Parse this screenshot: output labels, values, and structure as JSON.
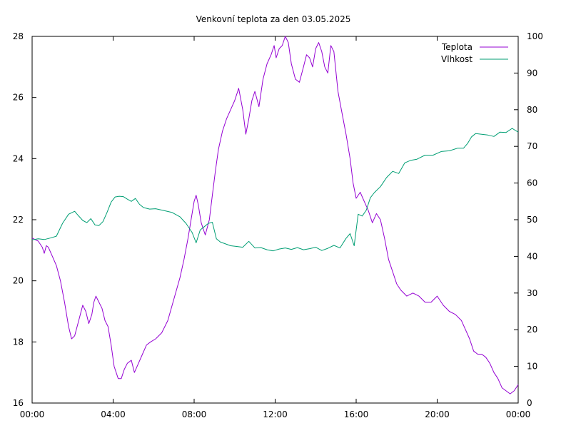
{
  "chart_data": {
    "type": "line",
    "title": "Venkovní teplota za den 03.05.2025",
    "xlabel": "",
    "ylabel": "",
    "y2label": "",
    "x_ticks": [
      "00:00",
      "04:00",
      "08:00",
      "12:00",
      "16:00",
      "20:00",
      "00:00"
    ],
    "xlim_hours": [
      0,
      24
    ],
    "ylim": [
      16,
      28
    ],
    "y_ticks": [
      "16",
      "18",
      "20",
      "22",
      "24",
      "26",
      "28"
    ],
    "y2lim": [
      0,
      100
    ],
    "y2_ticks": [
      "0",
      "10",
      "20",
      "30",
      "40",
      "50",
      "60",
      "70",
      "80",
      "90",
      "100"
    ],
    "grid": false,
    "legend_position": "top-right",
    "series": [
      {
        "name": "Teplota",
        "axis": "left",
        "color": "#9400d3",
        "x": [
          0,
          0.3,
          0.5,
          0.6,
          0.7,
          0.8,
          1.0,
          1.2,
          1.4,
          1.6,
          1.8,
          1.95,
          2.1,
          2.3,
          2.5,
          2.65,
          2.8,
          2.95,
          3.05,
          3.15,
          3.3,
          3.45,
          3.6,
          3.75,
          3.9,
          4.05,
          4.25,
          4.4,
          4.55,
          4.7,
          4.9,
          5.05,
          5.25,
          5.45,
          5.65,
          5.85,
          6.1,
          6.4,
          6.7,
          7.0,
          7.3,
          7.5,
          7.7,
          7.85,
          8.0,
          8.1,
          8.2,
          8.35,
          8.55,
          8.75,
          8.9,
          9.05,
          9.2,
          9.4,
          9.6,
          9.8,
          10.0,
          10.2,
          10.4,
          10.55,
          10.7,
          10.85,
          11.0,
          11.2,
          11.4,
          11.6,
          11.8,
          11.95,
          12.05,
          12.2,
          12.35,
          12.5,
          12.65,
          12.8,
          13.0,
          13.2,
          13.4,
          13.55,
          13.7,
          13.85,
          14.0,
          14.15,
          14.3,
          14.45,
          14.6,
          14.75,
          14.9,
          15.1,
          15.3,
          15.5,
          15.7,
          15.85,
          16.0,
          16.2,
          16.4,
          16.6,
          16.8,
          17.0,
          17.2,
          17.4,
          17.6,
          17.8,
          18.0,
          18.2,
          18.5,
          18.8,
          19.1,
          19.4,
          19.7,
          20.0,
          20.3,
          20.6,
          20.9,
          21.2,
          21.4,
          21.6,
          21.8,
          22.0,
          22.2,
          22.4,
          22.6,
          22.8,
          23.0,
          23.2,
          23.4,
          23.6,
          23.8,
          24.0
        ],
        "values": [
          21.4,
          21.3,
          21.1,
          20.9,
          21.15,
          21.1,
          20.8,
          20.5,
          20.0,
          19.3,
          18.5,
          18.1,
          18.2,
          18.7,
          19.2,
          19.0,
          18.6,
          18.9,
          19.3,
          19.5,
          19.3,
          19.1,
          18.7,
          18.5,
          17.9,
          17.2,
          16.8,
          16.8,
          17.1,
          17.3,
          17.4,
          17.0,
          17.3,
          17.6,
          17.9,
          18.0,
          18.1,
          18.3,
          18.7,
          19.4,
          20.1,
          20.7,
          21.4,
          22.0,
          22.6,
          22.8,
          22.5,
          21.9,
          21.5,
          22.0,
          22.8,
          23.6,
          24.3,
          24.9,
          25.3,
          25.6,
          25.9,
          26.3,
          25.6,
          24.8,
          25.3,
          25.9,
          26.2,
          25.7,
          26.6,
          27.1,
          27.4,
          27.7,
          27.3,
          27.6,
          27.7,
          28.0,
          27.8,
          27.1,
          26.6,
          26.5,
          27.0,
          27.4,
          27.3,
          27.0,
          27.6,
          27.8,
          27.5,
          27.0,
          26.8,
          27.7,
          27.5,
          26.2,
          25.5,
          24.8,
          24.0,
          23.2,
          22.7,
          22.9,
          22.6,
          22.3,
          21.9,
          22.2,
          22.0,
          21.4,
          20.7,
          20.3,
          19.9,
          19.7,
          19.5,
          19.6,
          19.5,
          19.3,
          19.3,
          19.5,
          19.2,
          19.0,
          18.9,
          18.7,
          18.4,
          18.1,
          17.7,
          17.6,
          17.6,
          17.5,
          17.3,
          17.0,
          16.8,
          16.5,
          16.4,
          16.3,
          16.4,
          16.6
        ]
      },
      {
        "name": "Vlhkost",
        "axis": "right",
        "color": "#009e73",
        "x": [
          0,
          0.3,
          0.6,
          0.9,
          1.2,
          1.5,
          1.8,
          2.1,
          2.3,
          2.5,
          2.7,
          2.9,
          3.1,
          3.3,
          3.5,
          3.7,
          3.9,
          4.1,
          4.3,
          4.5,
          4.7,
          4.9,
          5.1,
          5.3,
          5.5,
          5.8,
          6.1,
          6.5,
          6.9,
          7.3,
          7.6,
          7.9,
          8.1,
          8.3,
          8.5,
          8.7,
          8.9,
          9.1,
          9.3,
          9.5,
          9.8,
          10.1,
          10.4,
          10.7,
          11.0,
          11.3,
          11.6,
          11.9,
          12.2,
          12.5,
          12.8,
          13.1,
          13.4,
          13.7,
          14.0,
          14.3,
          14.6,
          14.9,
          15.2,
          15.5,
          15.7,
          15.9,
          16.1,
          16.3,
          16.5,
          16.7,
          16.9,
          17.2,
          17.5,
          17.8,
          18.1,
          18.4,
          18.7,
          19.0,
          19.4,
          19.8,
          20.2,
          20.6,
          21.0,
          21.3,
          21.5,
          21.7,
          21.9,
          22.2,
          22.5,
          22.8,
          23.1,
          23.4,
          23.7,
          24.0
        ],
        "values": [
          44.5,
          44.8,
          44.6,
          45.0,
          45.5,
          49.0,
          51.5,
          52.3,
          51.0,
          49.8,
          49.2,
          50.3,
          48.6,
          48.4,
          49.5,
          52.0,
          54.8,
          56.2,
          56.4,
          56.3,
          55.6,
          55.0,
          55.8,
          54.2,
          53.3,
          52.9,
          53.0,
          52.5,
          52.0,
          50.8,
          49.0,
          46.5,
          43.7,
          47.2,
          48.1,
          49.0,
          49.3,
          44.8,
          43.9,
          43.5,
          42.9,
          42.7,
          42.5,
          44.1,
          42.3,
          42.4,
          41.8,
          41.5,
          42.0,
          42.3,
          41.9,
          42.4,
          41.8,
          42.1,
          42.5,
          41.6,
          42.2,
          43.0,
          42.3,
          44.9,
          46.2,
          42.9,
          51.5,
          51.0,
          52.6,
          56.0,
          57.4,
          59.0,
          61.5,
          63.2,
          62.6,
          65.5,
          66.2,
          66.5,
          67.6,
          67.6,
          68.6,
          68.8,
          69.5,
          69.5,
          70.8,
          72.6,
          73.5,
          73.3,
          73.1,
          72.7,
          73.9,
          73.8,
          74.9,
          73.9
        ]
      }
    ]
  }
}
